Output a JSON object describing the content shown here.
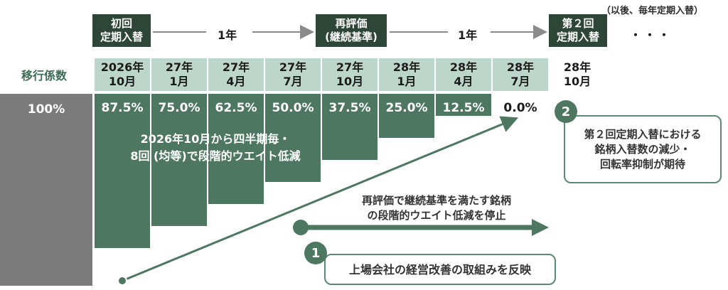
{
  "top_note": "（以後、毎年定期入替）",
  "milestones": {
    "first": "初回\n定期入替",
    "reeval": "再評価\n(継続基準)",
    "second": "第２回\n定期入替",
    "gap1": "1年",
    "gap2": "1年",
    "ellipsis": "・・・"
  },
  "row_label": "移行係数",
  "dates": [
    "2026年\n10月",
    "27年\n1月",
    "27年\n4月",
    "27年\n7月",
    "27年\n10月",
    "28年\n1月",
    "28年\n4月",
    "28年\n7月",
    "28年\n10月"
  ],
  "coefficients": {
    "base": "100%",
    "labels": [
      "87.5%",
      "75.0%",
      "62.5%",
      "50.0%",
      "37.5%",
      "25.0%",
      "12.5%",
      "0.0%"
    ],
    "values": [
      87.5,
      75.0,
      62.5,
      50.0,
      37.5,
      25.0,
      12.5,
      0.0
    ]
  },
  "step_text": "2026年10月から四半期毎・\n8回 (均等)で段階的ウエイト低減",
  "callout2": {
    "num": "2",
    "text": "第２回定期入替における\n銘柄入替数の減少・\n回転率抑制が期待"
  },
  "arrow_text": "再評価で継続基準を満たす銘柄\nの段階的ウエイト低減を停止",
  "callout1": {
    "num": "1",
    "text": "上場会社の経営改善の取組みを反映"
  },
  "colors": {
    "dark": "#2e4638",
    "bar": "#4e7762",
    "light": "#bdd6cb",
    "gray": "#7b7b7b"
  }
}
